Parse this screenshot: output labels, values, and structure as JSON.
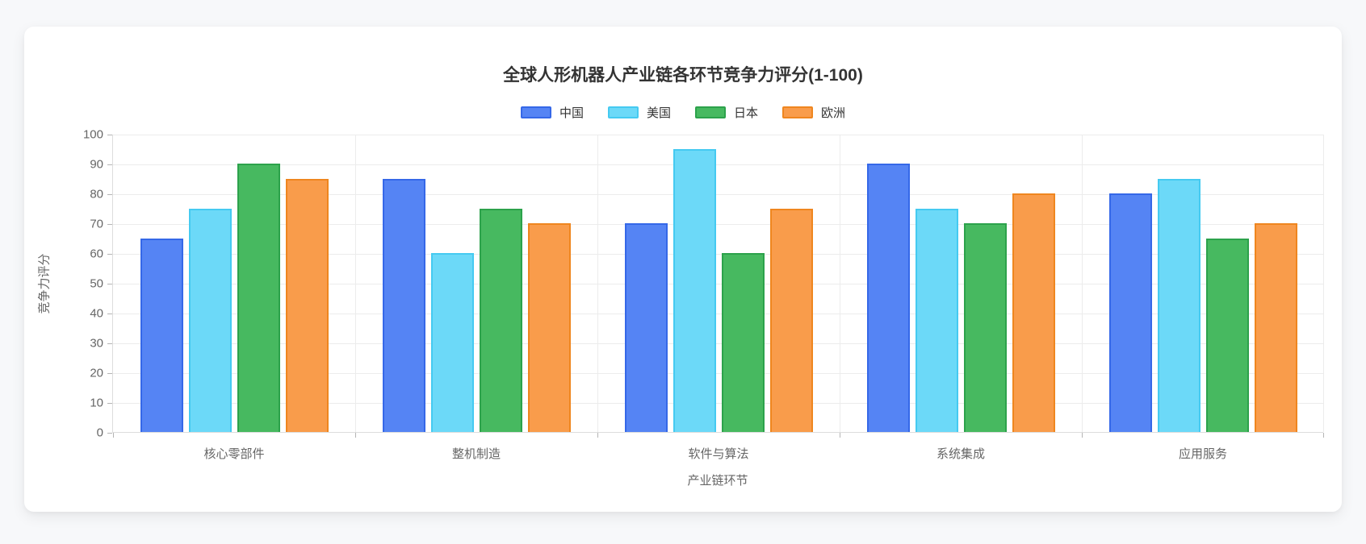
{
  "page": {
    "background_color": "#f7f8fa",
    "card_background_color": "#ffffff"
  },
  "chart_data": {
    "type": "bar",
    "title": "全球人形机器人产业链各环节竞争力评分(1-100)",
    "xlabel": "产业链环节",
    "ylabel": "竞争力评分",
    "ylim": [
      0,
      100
    ],
    "ytick_step": 10,
    "ytick_labels": [
      "0",
      "10",
      "20",
      "30",
      "40",
      "50",
      "60",
      "70",
      "80",
      "90",
      "100"
    ],
    "grid": true,
    "legend_position": "top",
    "categories": [
      "核心零部件",
      "整机制造",
      "软件与算法",
      "系统集成",
      "应用服务"
    ],
    "series": [
      {
        "name": "中国",
        "color": "#5584F4",
        "border_color": "#3568E8",
        "values": [
          65,
          85,
          70,
          90,
          80
        ]
      },
      {
        "name": "美国",
        "color": "#6CD9F8",
        "border_color": "#45CAF1",
        "values": [
          75,
          60,
          95,
          75,
          85
        ]
      },
      {
        "name": "日本",
        "color": "#47B960",
        "border_color": "#2CA24B",
        "values": [
          90,
          75,
          60,
          70,
          65
        ]
      },
      {
        "name": "欧洲",
        "color": "#F99C4B",
        "border_color": "#EF861F",
        "values": [
          85,
          70,
          75,
          80,
          70
        ]
      }
    ]
  }
}
